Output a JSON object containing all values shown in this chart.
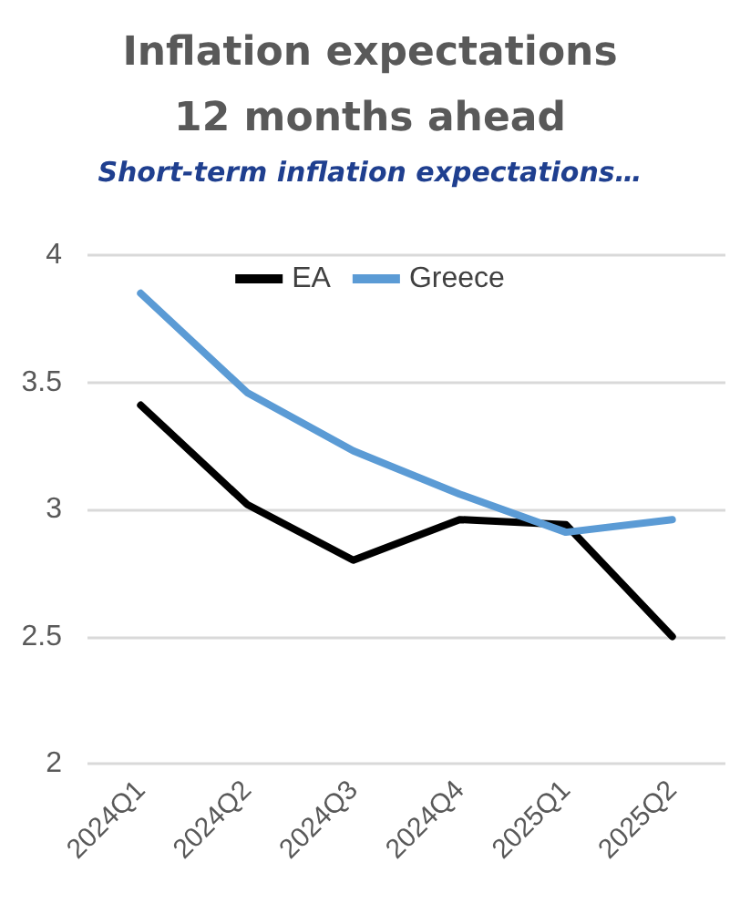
{
  "chart_data": {
    "type": "line",
    "title": "Inflation expectations\n12 months ahead",
    "subtitle": "Short-term inflation expectations…",
    "categories": [
      "2024Q1",
      "2024Q2",
      "2024Q3",
      "2024Q4",
      "2025Q1",
      "2025Q2"
    ],
    "series": [
      {
        "name": "EA",
        "color": "#000000",
        "values": [
          3.41,
          3.02,
          2.8,
          2.96,
          2.94,
          2.5
        ]
      },
      {
        "name": "Greece",
        "color": "#5b9bd5",
        "values": [
          3.85,
          3.46,
          3.23,
          3.06,
          2.91,
          2.96
        ]
      }
    ],
    "ylim": [
      2,
      4
    ],
    "yticks": [
      2,
      2.5,
      3,
      3.5,
      4
    ],
    "grid": "y",
    "legend": "top",
    "marker": "none",
    "line_style": "solid"
  }
}
